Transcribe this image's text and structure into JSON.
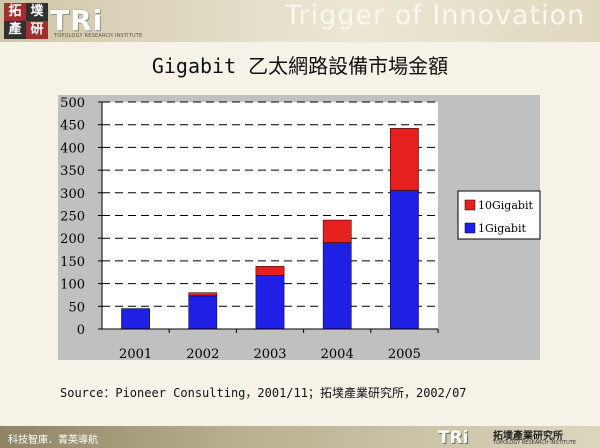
{
  "header": {
    "logo_chars": [
      "拓",
      "墣",
      "產",
      "研"
    ],
    "logo_text": "TRi",
    "logo_subtitle": "TOPOLOGY RESEARCH INSTITUTE",
    "tagline": "Trigger of Innovation"
  },
  "chart_data": {
    "type": "bar",
    "stacked": true,
    "title": "Gigabit 乙太網路設備市場金額",
    "categories": [
      "2001",
      "2002",
      "2003",
      "2004",
      "2005"
    ],
    "series": [
      {
        "name": "1Gigabit",
        "color": "#1f1fe6",
        "values": [
          45,
          73,
          118,
          190,
          305
        ]
      },
      {
        "name": "10Gigabit",
        "color": "#e61f1f",
        "values": [
          0,
          7,
          20,
          50,
          137
        ]
      }
    ],
    "ylim": [
      0,
      500
    ],
    "yticks": [
      0,
      50,
      100,
      150,
      200,
      250,
      300,
      350,
      400,
      450,
      500
    ],
    "grid": true,
    "legend_position": "right",
    "xlabel": "",
    "ylabel": ""
  },
  "source": "Source：Pioneer Consulting，2001/11；拓墣產業研究所，2002/07",
  "footer": {
    "left_text": "科技智庫．菁英導航",
    "logo_text": "TRi",
    "org_name": "拓墣產業研究所",
    "org_subtitle": "TOPOLOGY RESEARCH INSTITUTE"
  }
}
